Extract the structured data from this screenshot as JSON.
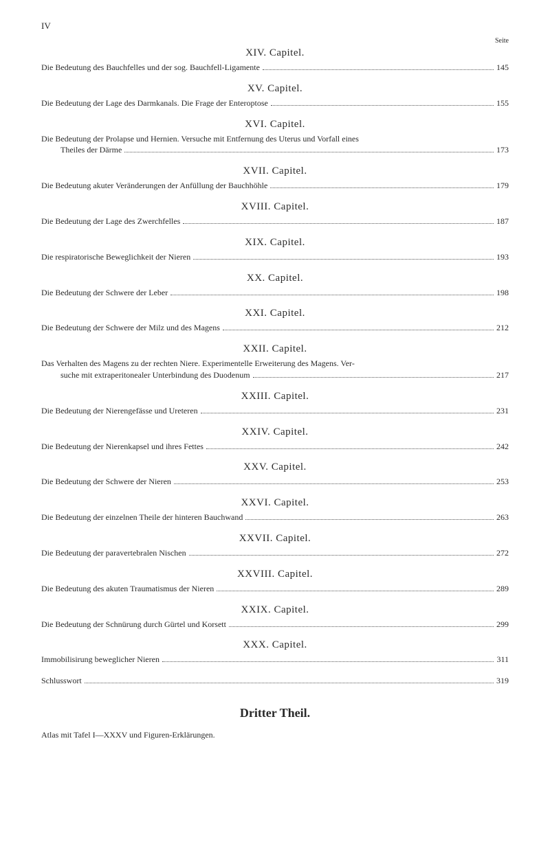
{
  "pageNumberRoman": "IV",
  "seiteLabel": "Seite",
  "chapters": [
    {
      "heading": "XIV. Capitel.",
      "entry": "Die Bedeutung des Bauchfelles und der sog. Bauchfell-Ligamente",
      "page": "145"
    },
    {
      "heading": "XV. Capitel.",
      "entry": "Die Bedeutung der Lage des Darmkanals. Die Frage der Enteroptose",
      "page": "155"
    },
    {
      "heading": "XVI. Capitel.",
      "entry": "Die Bedeutung der Prolapse und Hernien. Versuche mit Entfernung des Uterus und Vorfall eines",
      "continuation": "Theiles der Därme",
      "page": "173"
    },
    {
      "heading": "XVII. Capitel.",
      "entry": "Die Bedeutung akuter Veränderungen der Anfüllung der Bauchhöhle",
      "page": "179"
    },
    {
      "heading": "XVIII. Capitel.",
      "entry": "Die Bedeutung der Lage des Zwerchfelles",
      "page": "187"
    },
    {
      "heading": "XIX. Capitel.",
      "entry": "Die respiratorische Beweglichkeit der Nieren",
      "page": "193"
    },
    {
      "heading": "XX. Capitel.",
      "entry": "Die Bedeutung der Schwere der Leber",
      "page": "198"
    },
    {
      "heading": "XXI. Capitel.",
      "entry": "Die Bedeutung der Schwere der Milz und des Magens",
      "page": "212"
    },
    {
      "heading": "XXII. Capitel.",
      "entry": "Das Verhalten des Magens zu der rechten Niere. Experimentelle Erweiterung des Magens. Ver-",
      "continuation": "suche mit extraperitonealer Unterbindung des Duodenum",
      "page": "217"
    },
    {
      "heading": "XXIII. Capitel.",
      "entry": "Die Bedeutung der Nierengefässe und Ureteren",
      "page": "231"
    },
    {
      "heading": "XXIV. Capitel.",
      "entry": "Die Bedeutung der Nierenkapsel und ihres Fettes",
      "page": "242"
    },
    {
      "heading": "XXV. Capitel.",
      "entry": "Die Bedeutung der Schwere der Nieren",
      "page": "253"
    },
    {
      "heading": "XXVI. Capitel.",
      "entry": "Die Bedeutung der einzelnen Theile der hinteren Bauchwand",
      "page": "263"
    },
    {
      "heading": "XXVII. Capitel.",
      "entry": "Die Bedeutung der paravertebralen Nischen",
      "page": "272"
    },
    {
      "heading": "XXVIII. Capitel.",
      "entry": "Die Bedeutung des akuten Traumatismus der Nieren",
      "page": "289"
    },
    {
      "heading": "XXIX. Capitel.",
      "entry": "Die Bedeutung der Schnürung durch Gürtel und Korsett",
      "page": "299"
    },
    {
      "heading": "XXX. Capitel.",
      "entry": "Immobilisirung beweglicher Nieren",
      "page": "311"
    }
  ],
  "schlusswort": {
    "label": "Schlusswort",
    "page": "319"
  },
  "finalTitle": "Dritter Theil.",
  "atlasLine": "Atlas mit Tafel I—XXXV und Figuren-Erklärungen."
}
